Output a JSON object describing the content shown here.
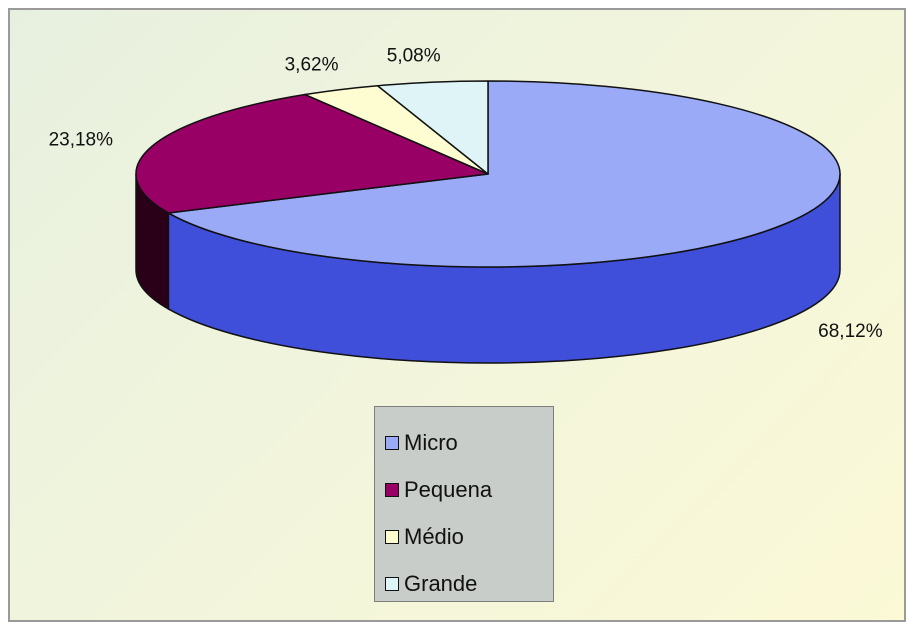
{
  "chart_data": {
    "type": "pie",
    "title": "",
    "categories": [
      "Micro",
      "Pequena",
      "Médio",
      "Grande"
    ],
    "values": [
      68.12,
      23.18,
      3.62,
      5.08
    ],
    "value_labels": [
      "68,12%",
      "23,18%",
      "3,62%",
      "5,08%"
    ],
    "colors": [
      "#9aaaf6",
      "#990066",
      "#fefdd2",
      "#dff4f7"
    ],
    "side_colors": [
      "#3f4fd9",
      "#2a0018",
      "#b8b48c",
      "#a8c4c8"
    ],
    "style": "3d-tilted",
    "legend_position": "bottom"
  },
  "legend": {
    "items": [
      {
        "label": "Micro",
        "color": "#9aaaf6"
      },
      {
        "label": "Pequena",
        "color": "#990066"
      },
      {
        "label": "Médio",
        "color": "#fefdd2"
      },
      {
        "label": "Grande",
        "color": "#dff4f7"
      }
    ]
  }
}
